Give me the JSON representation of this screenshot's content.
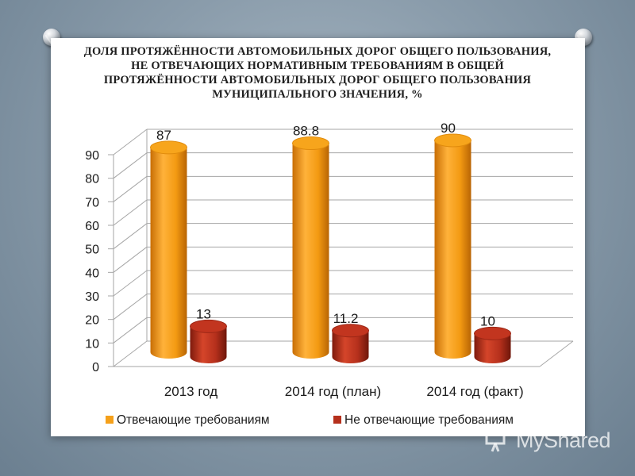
{
  "title": "ДОЛЯ ПРОТЯЖЁННОСТИ АВТОМОБИЛЬНЫХ ДОРОГ ОБЩЕГО ПОЛЬЗОВАНИЯ, НЕ ОТВЕЧАЮЩИХ НОРМАТИВНЫМ ТРЕБОВАНИЯМ В ОБЩЕЙ ПРОТЯЖЁННОСТИ АВТОМОБИЛЬНЫХ ДОРОГ ОБЩЕГО ПОЛЬЗОВАНИЯ МУНИЦИПАЛЬНОГО ЗНАЧЕНИЯ, %",
  "watermark": "MyShared",
  "chart_data": {
    "type": "bar",
    "title": "ДОЛЯ ПРОТЯЖЁННОСТИ АВТОМОБИЛЬНЫХ ДОРОГ ОБЩЕГО ПОЛЬЗОВАНИЯ, НЕ ОТВЕЧАЮЩИХ НОРМАТИВНЫМ ТРЕБОВАНИЯМ В ОБЩЕЙ ПРОТЯЖЁННОСТИ АВТОМОБИЛЬНЫХ ДОРОГ ОБЩЕГО ПОЛЬЗОВАНИЯ МУНИЦИПАЛЬНОГО ЗНАЧЕНИЯ, %",
    "style": "3d-cylinder",
    "categories": [
      "2013 год",
      "2014 год (план)",
      "2014 год (факт)"
    ],
    "series": [
      {
        "name": "Отвечающие требованиям",
        "values": [
          87,
          88.8,
          90
        ],
        "labels": [
          "87",
          "88.8",
          "90"
        ],
        "color": "#f5a01a"
      },
      {
        "name": "Не отвечающие требованиям",
        "values": [
          13,
          11.2,
          10
        ],
        "labels": [
          "13",
          "11.2",
          "10"
        ],
        "color": "#b5301c"
      }
    ],
    "yticks": [
      "0",
      "10",
      "20",
      "30",
      "40",
      "50",
      "60",
      "70",
      "80",
      "90"
    ],
    "ylim": [
      0,
      90
    ],
    "grid": true,
    "legend": "bottom"
  }
}
